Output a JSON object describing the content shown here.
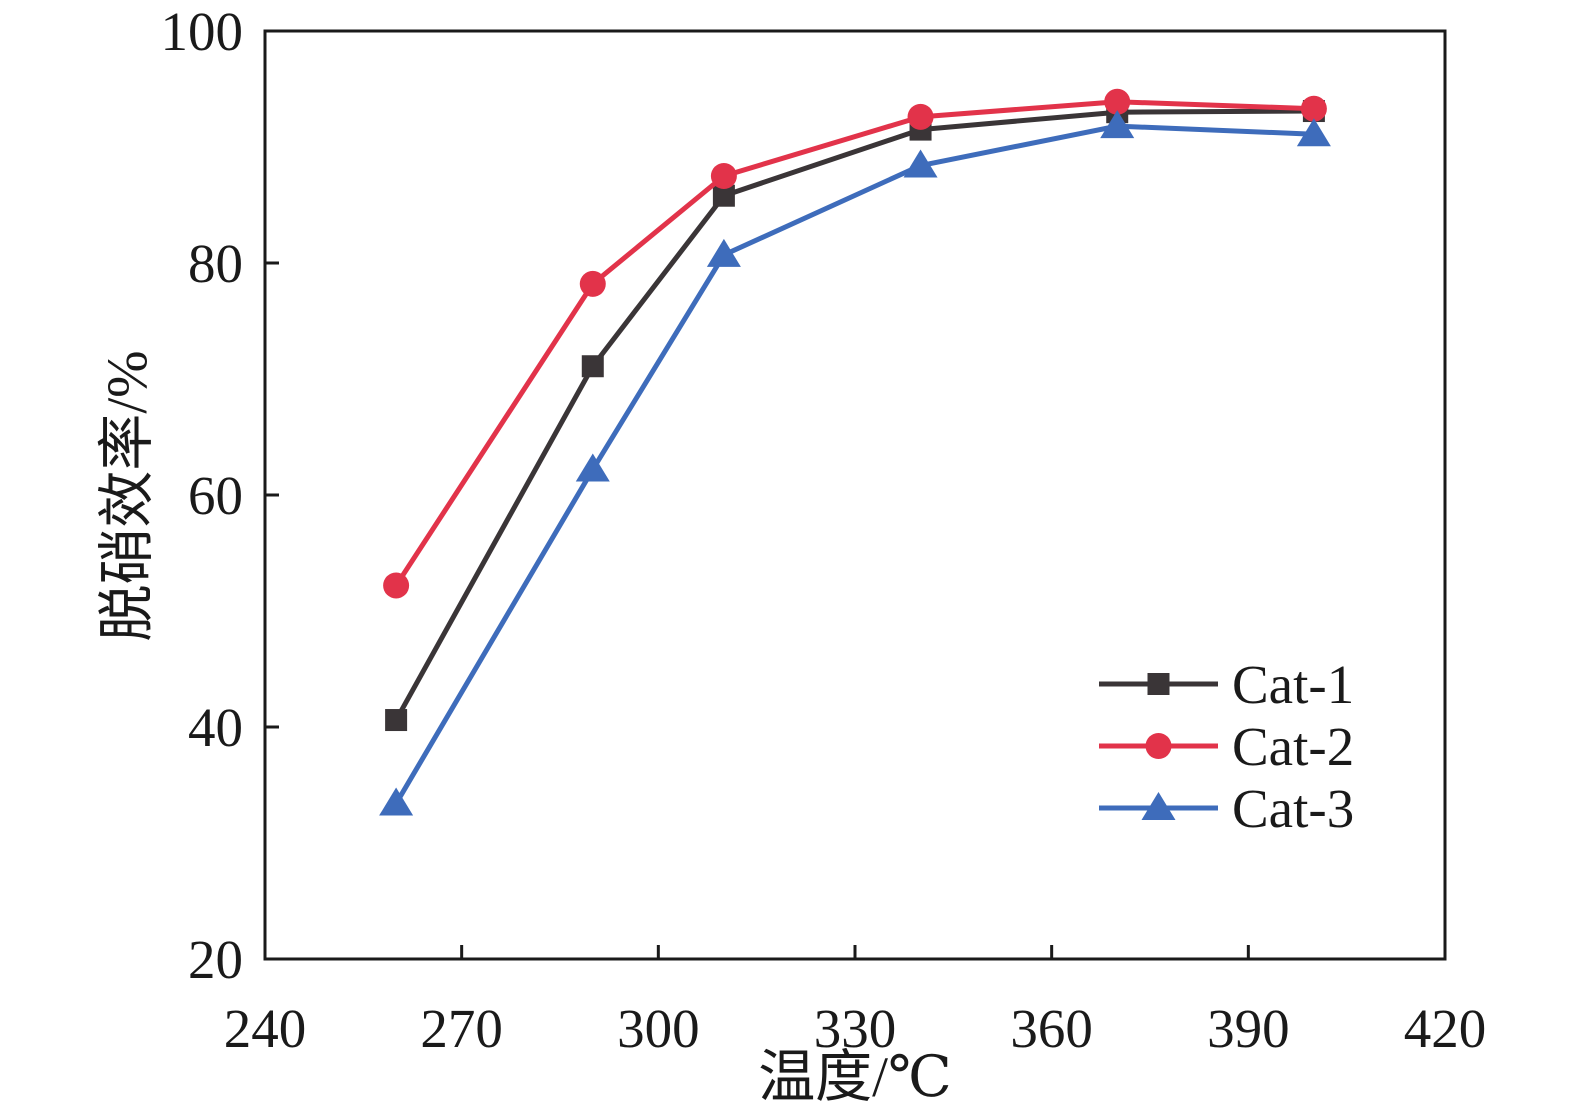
{
  "page": {
    "background": "#ffffff"
  },
  "chart_data": {
    "type": "line",
    "title": "",
    "xlabel": "温度/℃",
    "ylabel": "脱硝效率/%",
    "x": [
      260,
      290,
      310,
      340,
      370,
      400
    ],
    "series": [
      {
        "name": "Cat-1",
        "marker": "square",
        "color": "#3a3537",
        "values": [
          40.6,
          71.1,
          85.8,
          91.5,
          93.0,
          93.1
        ]
      },
      {
        "name": "Cat-2",
        "marker": "circle",
        "color": "#e2334a",
        "values": [
          52.2,
          78.2,
          87.5,
          92.6,
          93.9,
          93.3
        ]
      },
      {
        "name": "Cat-3",
        "marker": "triangle",
        "color": "#3e6cbb",
        "values": [
          33.4,
          62.2,
          80.7,
          88.4,
          91.8,
          91.1
        ]
      }
    ],
    "xlim": [
      240,
      420
    ],
    "xticks": [
      "240",
      "270",
      "300",
      "330",
      "360",
      "390",
      "420"
    ],
    "xtick_values": [
      240,
      270,
      300,
      330,
      360,
      390,
      420
    ],
    "ylim": [
      20,
      100
    ],
    "yticks": [
      "20",
      "40",
      "60",
      "80",
      "100"
    ],
    "ytick_values": [
      20,
      40,
      60,
      80,
      100
    ],
    "grid": false,
    "axis_color": "#1a1a1a",
    "legend": {
      "position": "inside-right-middle",
      "items": [
        "Cat-1",
        "Cat-2",
        "Cat-3"
      ]
    }
  }
}
